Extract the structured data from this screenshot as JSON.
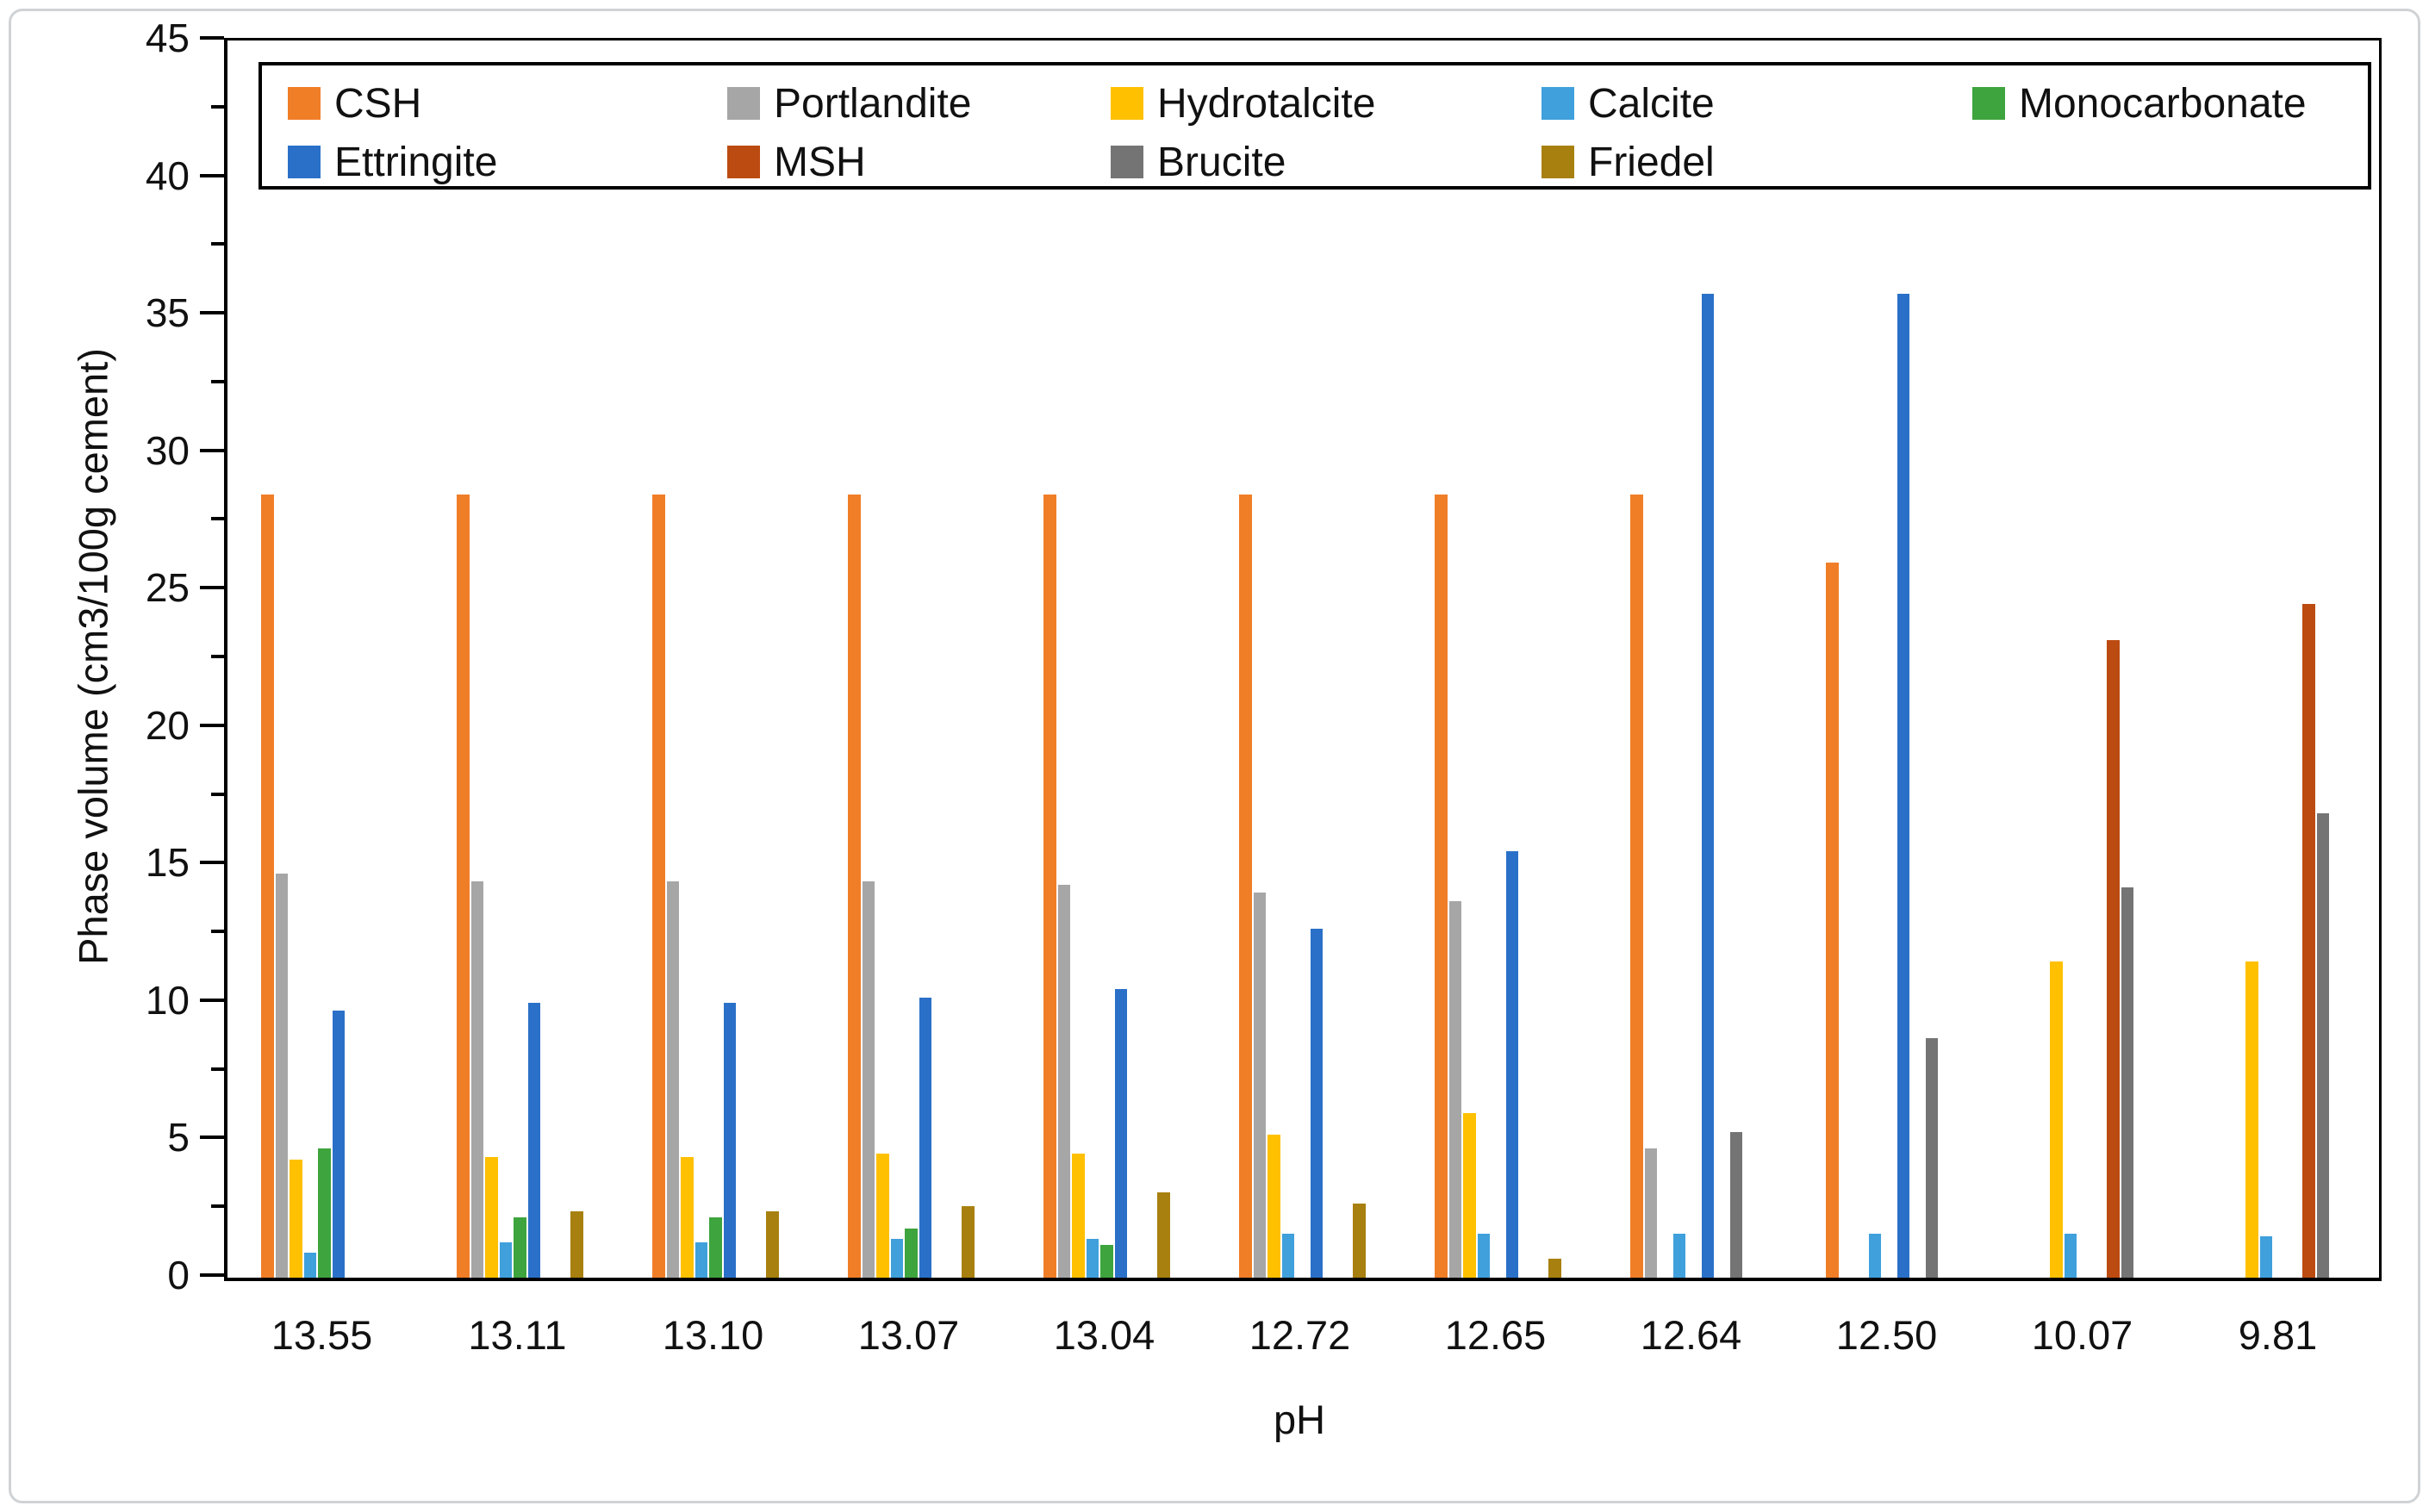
{
  "figure": {
    "background": "#ffffff",
    "frame_border_color": "#cfd3d6",
    "axis_color": "#000000",
    "text_color": "#111111"
  },
  "chart_data": {
    "type": "bar",
    "title": "",
    "xlabel": "pH",
    "ylabel": "Phase volume (cm3/100g cement)",
    "ylim": [
      0,
      45
    ],
    "ytick_step": 5,
    "ytick_minor_step": 2.5,
    "ytick_labels": [
      "0",
      "5",
      "10",
      "15",
      "20",
      "25",
      "30",
      "35",
      "40",
      "45"
    ],
    "grid": false,
    "legend_position": "top-inside-two-rows",
    "categories": [
      "13.55",
      "13.11",
      "13.10",
      "13.07",
      "13.04",
      "12.72",
      "12.65",
      "12.64",
      "12.50",
      "10.07",
      "9.81"
    ],
    "series": [
      {
        "name": "CSH",
        "color": "#F07E27",
        "values": [
          28.5,
          28.5,
          28.5,
          28.5,
          28.5,
          28.5,
          28.5,
          28.5,
          26.0,
          0,
          0
        ]
      },
      {
        "name": "Portlandite",
        "color": "#A6A6A6",
        "values": [
          14.7,
          14.4,
          14.4,
          14.4,
          14.3,
          14.0,
          13.7,
          4.7,
          0,
          0,
          0
        ]
      },
      {
        "name": "Hydrotalcite",
        "color": "#FFC000",
        "values": [
          4.3,
          4.4,
          4.4,
          4.5,
          4.5,
          5.2,
          6.0,
          0,
          0,
          11.5,
          11.5
        ]
      },
      {
        "name": "Calcite",
        "color": "#3FA0DC",
        "values": [
          0.9,
          1.3,
          1.3,
          1.4,
          1.4,
          1.6,
          1.6,
          1.6,
          1.6,
          1.6,
          1.5
        ]
      },
      {
        "name": "Monocarbonate",
        "color": "#3EA43E",
        "values": [
          4.7,
          2.2,
          2.2,
          1.8,
          1.2,
          0,
          0,
          0,
          0,
          0,
          0
        ]
      },
      {
        "name": "Ettringite",
        "color": "#2A70C8",
        "values": [
          9.7,
          10.0,
          10.0,
          10.2,
          10.5,
          12.7,
          15.5,
          35.8,
          35.8,
          0,
          0
        ]
      },
      {
        "name": "MSH",
        "color": "#BC4B11",
        "values": [
          0,
          0,
          0,
          0,
          0,
          0,
          0,
          0,
          0,
          23.2,
          24.5
        ]
      },
      {
        "name": "Brucite",
        "color": "#747474",
        "values": [
          0,
          0,
          0,
          0,
          0,
          0,
          0,
          5.3,
          8.7,
          14.2,
          16.9
        ]
      },
      {
        "name": "Friedel",
        "color": "#A8800F",
        "values": [
          0,
          2.4,
          2.4,
          2.6,
          3.1,
          2.7,
          0.7,
          0,
          0,
          0,
          0
        ]
      }
    ],
    "legend_rows": [
      [
        0,
        1,
        2,
        3,
        4
      ],
      [
        5,
        6,
        7,
        8
      ]
    ]
  }
}
